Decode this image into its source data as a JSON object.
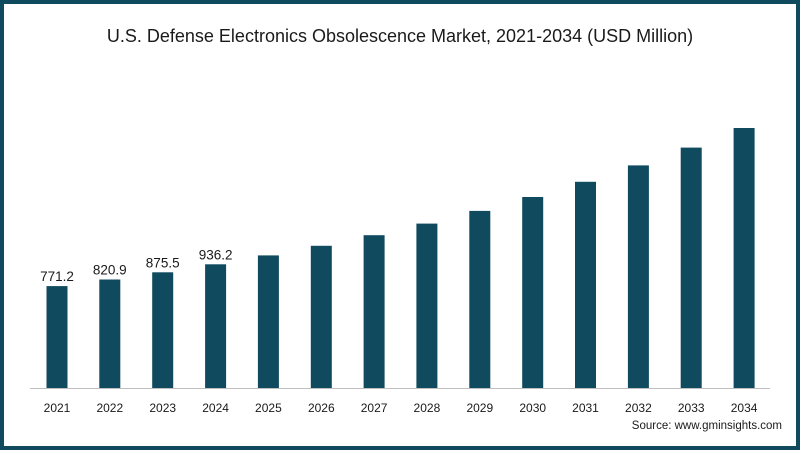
{
  "title": "U.S. Defense Electronics Obsolescence Market, 2021-2034 (USD Million)",
  "source": "Source: www.gminsights.com",
  "colors": {
    "bar": "#0f4a5f",
    "frame": "#0f4a5f",
    "axis": "#bfbfbf"
  },
  "chart_data": {
    "type": "bar",
    "title": "U.S. Defense Electronics Obsolescence Market, 2021-2034 (USD Million)",
    "categories": [
      "2021",
      "2022",
      "2023",
      "2024",
      "2025",
      "2026",
      "2027",
      "2028",
      "2029",
      "2030",
      "2031",
      "2032",
      "2033",
      "2034"
    ],
    "values": [
      771.2,
      820.9,
      875.5,
      936.2,
      1003,
      1076,
      1156,
      1244,
      1340,
      1445,
      1560,
      1684,
      1819,
      1967
    ],
    "data_labels": [
      "771.2",
      "820.9",
      "875.5",
      "936.2",
      "",
      "",
      "",
      "",
      "",
      "",
      "",
      "",
      "",
      ""
    ],
    "xlabel": "",
    "ylabel": "",
    "ylim": [
      0,
      2000
    ],
    "grid": false,
    "legend": "none"
  }
}
